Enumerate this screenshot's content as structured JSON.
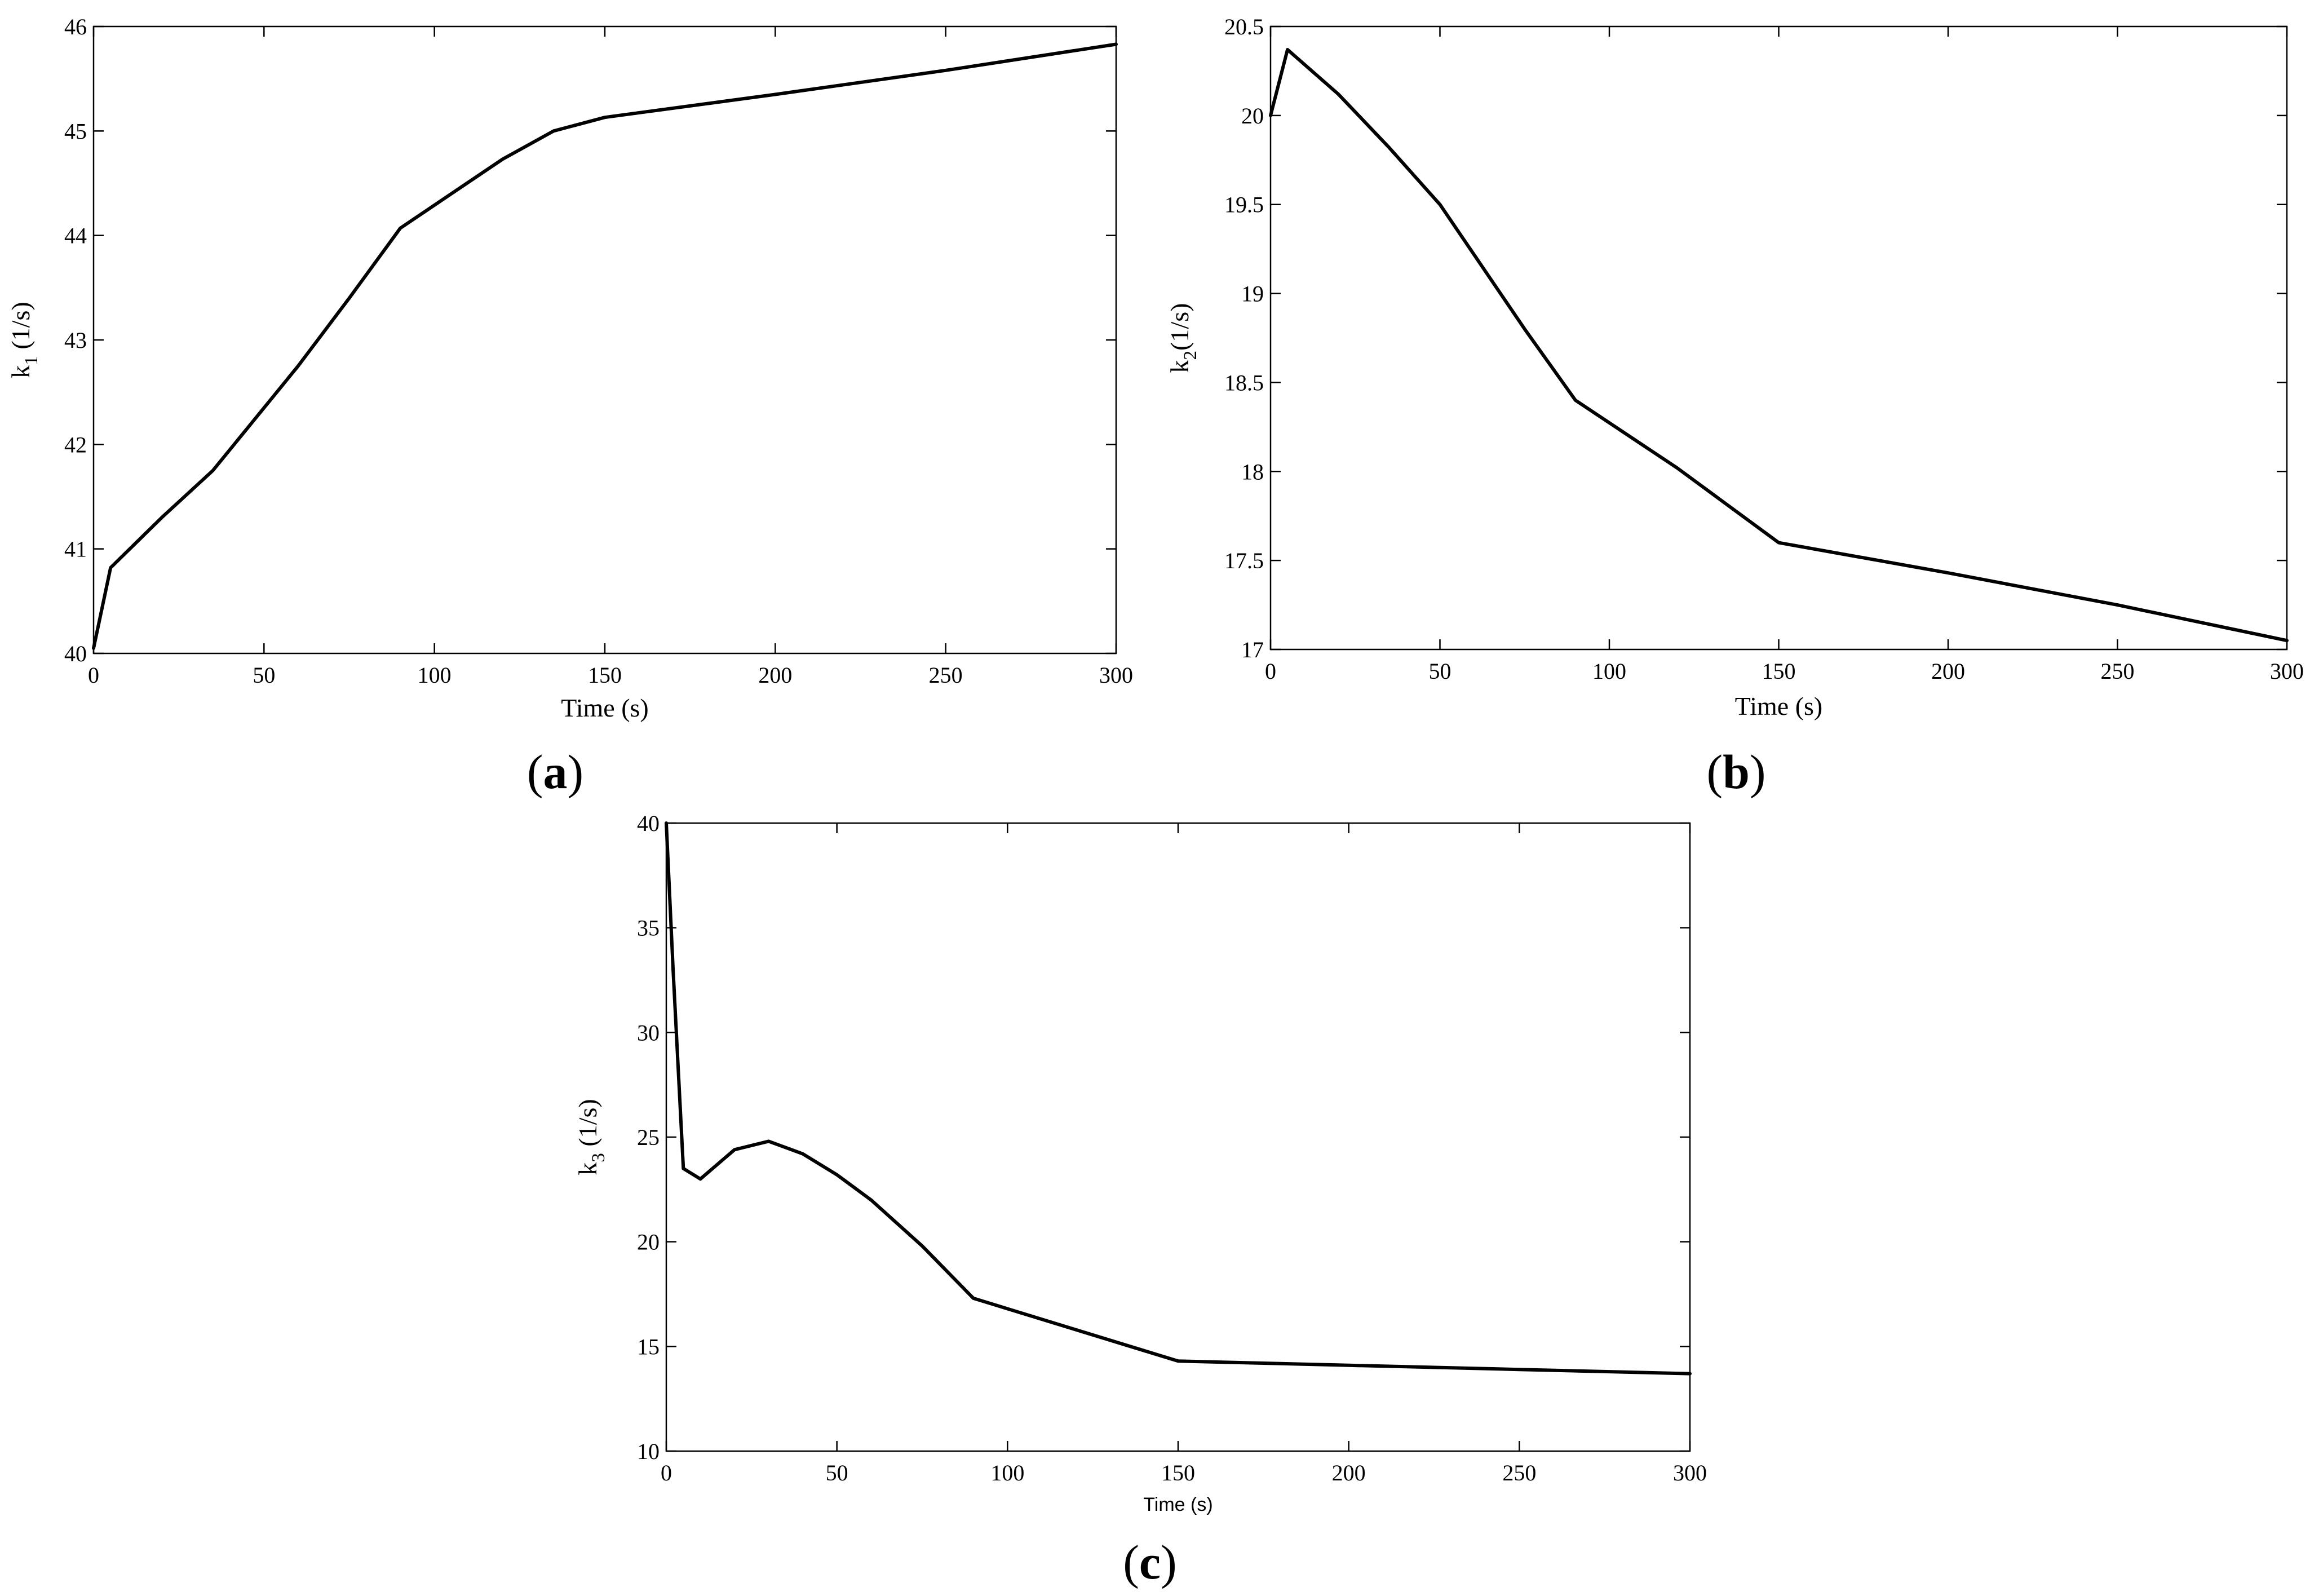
{
  "chart_data": [
    {
      "type": "line",
      "panel_label": "a",
      "title": "",
      "xlabel": "Time (s)",
      "ylabel": {
        "base": "k",
        "sub": "1",
        "rest": " (1/s)"
      },
      "xlim": [
        0,
        300
      ],
      "ylim": [
        40,
        46
      ],
      "xticks": [
        0,
        50,
        100,
        150,
        200,
        250,
        300
      ],
      "yticks": [
        40,
        41,
        42,
        43,
        44,
        45,
        46
      ],
      "grid": false,
      "series": [
        {
          "x": [
            0,
            5,
            20,
            35,
            60,
            75,
            90,
            105,
            120,
            135,
            150,
            200,
            250,
            300
          ],
          "y": [
            40.05,
            40.82,
            41.3,
            41.75,
            42.75,
            43.4,
            44.07,
            44.4,
            44.73,
            45.0,
            45.13,
            45.35,
            45.58,
            45.83
          ]
        }
      ]
    },
    {
      "type": "line",
      "panel_label": "b",
      "title": "",
      "xlabel": "Time (s)",
      "ylabel": {
        "base": "k",
        "sub": "2",
        "rest": "(1/s)"
      },
      "xlim": [
        0,
        300
      ],
      "ylim": [
        17,
        20.5
      ],
      "xticks": [
        0,
        50,
        100,
        150,
        200,
        250,
        300
      ],
      "yticks": [
        17,
        17.5,
        18,
        18.5,
        19,
        19.5,
        20,
        20.5
      ],
      "grid": false,
      "series": [
        {
          "x": [
            0,
            5,
            20,
            35,
            50,
            60,
            75,
            90,
            120,
            150,
            200,
            250,
            300
          ],
          "y": [
            20.0,
            20.37,
            20.12,
            19.82,
            19.5,
            19.22,
            18.8,
            18.4,
            18.02,
            17.6,
            17.43,
            17.25,
            17.05
          ]
        }
      ]
    },
    {
      "type": "line",
      "panel_label": "c",
      "title": "",
      "xlabel": "Time (s)",
      "ylabel": {
        "base": "k",
        "sub": "3",
        "rest": " (1/s)"
      },
      "xlim": [
        0,
        300
      ],
      "ylim": [
        10,
        40
      ],
      "xticks": [
        0,
        50,
        100,
        150,
        200,
        250,
        300
      ],
      "yticks": [
        10,
        15,
        20,
        25,
        30,
        35,
        40
      ],
      "grid": false,
      "series": [
        {
          "x": [
            0,
            2,
            5,
            10,
            20,
            30,
            40,
            50,
            60,
            75,
            90,
            120,
            150,
            200,
            250,
            300
          ],
          "y": [
            40,
            33,
            23.5,
            23.0,
            24.4,
            24.8,
            24.2,
            23.2,
            22.0,
            19.8,
            17.3,
            15.8,
            14.3,
            14.1,
            13.9,
            13.7
          ]
        }
      ]
    }
  ]
}
